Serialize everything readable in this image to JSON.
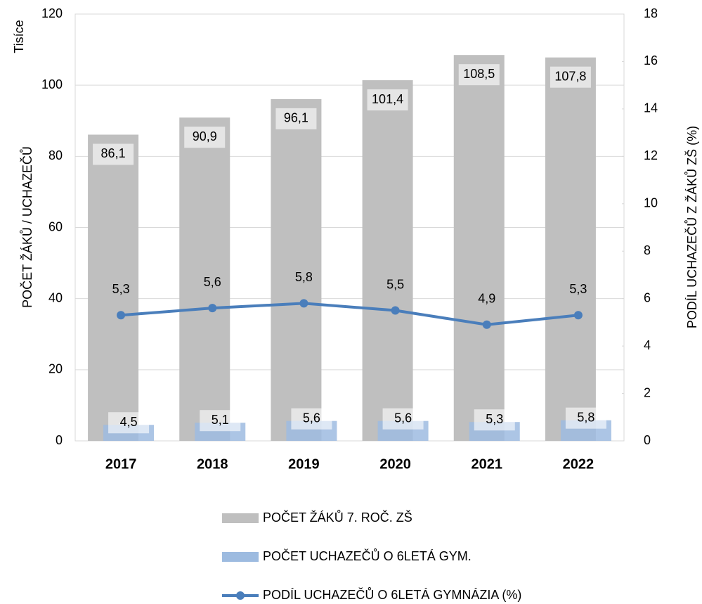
{
  "chart_data": {
    "type": "bar",
    "units_label": "Tisíce",
    "ylabel": "POČET ŽÁKŮ / UCHAZEČŮ",
    "y2label": "PODÍL UCHAZEČŮ Z ŽÁKŮ ZŠ (%)",
    "categories": [
      "2017",
      "2018",
      "2019",
      "2020",
      "2021",
      "2022"
    ],
    "series": [
      {
        "name": "POČET ŽÁKŮ 7. ROČ. ZŠ",
        "type": "bar",
        "color": "#bfbfbf",
        "values": [
          86.1,
          90.9,
          96.1,
          101.4,
          108.5,
          107.8
        ],
        "value_labels": [
          "86,1",
          "90,9",
          "96,1",
          "101,4",
          "108,5",
          "107,8"
        ]
      },
      {
        "name": "POČET UCHAZEČŮ O 6LETÁ GYM.",
        "type": "bar",
        "color": "#9dbbe0",
        "values": [
          4.5,
          5.1,
          5.6,
          5.6,
          5.3,
          5.8
        ],
        "value_labels": [
          "4,5",
          "5,1",
          "5,6",
          "5,6",
          "5,3",
          "5,8"
        ]
      },
      {
        "name": "PODÍL UCHAZEČŮ O 6LETÁ GYMNÁZIA (%)",
        "type": "line",
        "axis": "y2",
        "color": "#4a7ebb",
        "values": [
          5.3,
          5.6,
          5.8,
          5.5,
          4.9,
          5.3
        ],
        "value_labels": [
          "5,3",
          "5,6",
          "5,8",
          "5,5",
          "4,9",
          "5,3"
        ]
      }
    ],
    "ylim": [
      0,
      120
    ],
    "yticks": [
      0,
      20,
      40,
      60,
      80,
      100,
      120
    ],
    "y2lim": [
      0,
      18
    ],
    "y2ticks": [
      0,
      2,
      4,
      6,
      8,
      10,
      12,
      14,
      16,
      18
    ],
    "grid": true,
    "legend": "bottom"
  }
}
